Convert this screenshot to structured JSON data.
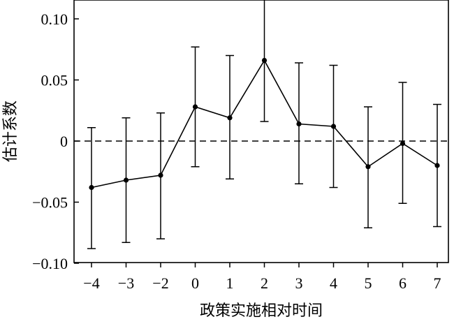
{
  "chart_data": {
    "type": "line",
    "title": "",
    "xlabel": "政策实施相对时间",
    "ylabel": "估计系数",
    "x": [
      -4,
      -3,
      -2,
      0,
      1,
      2,
      3,
      4,
      5,
      6,
      7
    ],
    "x_tick_labels": [
      "−4",
      "−3",
      "−2",
      "0",
      "1",
      "2",
      "3",
      "4",
      "5",
      "6",
      "7"
    ],
    "y_ticks": [
      0.1,
      0.05,
      0,
      -0.05,
      -0.1
    ],
    "y_tick_labels": [
      "0.10",
      "0.05",
      "0",
      "−0.05",
      "−0.10"
    ],
    "ylim": [
      -0.1,
      0.115
    ],
    "reference_line": {
      "y": 0,
      "style": "dashed"
    },
    "series": [
      {
        "values": [
          -0.038,
          -0.032,
          -0.028,
          0.028,
          0.019,
          0.066,
          0.014,
          0.012,
          -0.021,
          -0.002,
          -0.02
        ],
        "ci_lower": [
          -0.088,
          -0.083,
          -0.08,
          -0.021,
          -0.031,
          0.016,
          -0.035,
          -0.038,
          -0.071,
          -0.051,
          -0.07
        ],
        "ci_upper": [
          0.011,
          0.019,
          0.023,
          0.077,
          0.07,
          0.116,
          0.064,
          0.062,
          0.028,
          0.048,
          0.03
        ]
      }
    ],
    "colors": {
      "line": "#000000",
      "marker": "#000000"
    }
  }
}
